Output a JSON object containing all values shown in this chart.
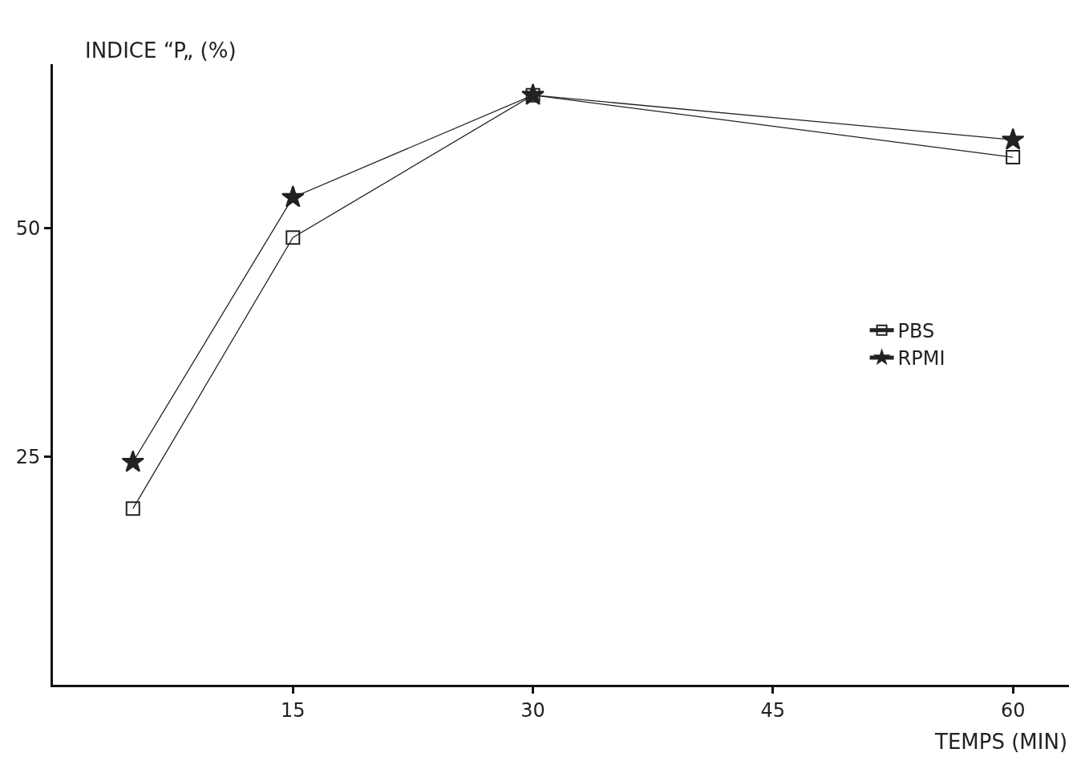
{
  "chart_data": {
    "type": "line",
    "ylabel": "INDICE “P„ (%)",
    "xlabel": "TEMPS (MIN)",
    "x": [
      5,
      15,
      30,
      60
    ],
    "series": [
      {
        "name": "PBS",
        "color": "#222222",
        "marker": "square",
        "values": [
          19.3,
          49.0,
          64.6,
          57.8
        ]
      },
      {
        "name": "RPMI",
        "color": "#222222",
        "marker": "star",
        "values": [
          24.4,
          53.4,
          64.6,
          59.7
        ]
      }
    ],
    "xlim": [
      0,
      63.5
    ],
    "xticks": [
      15,
      30,
      45,
      60
    ],
    "ylim": [
      0,
      68
    ],
    "yticks": [
      25,
      50
    ],
    "legend": "right",
    "line_style": "solid"
  }
}
